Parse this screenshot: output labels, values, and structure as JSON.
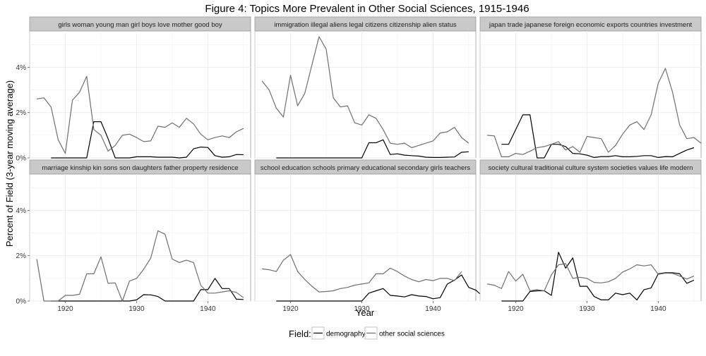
{
  "chart_data": {
    "type": "line",
    "title": "Figure 4: Topics More Prevalent in Other Social Sciences, 1915-1946",
    "xlabel": "Year",
    "ylabel": "Percent of Field (3-year moving average)",
    "x_ticks": [
      1920,
      1930,
      1940
    ],
    "y_ticks": [
      "0%",
      "2%",
      "4%"
    ],
    "xlim": [
      1915,
      1946
    ],
    "ylim": [
      0,
      5.6
    ],
    "grid": true,
    "legend": {
      "title": "Field:",
      "position": "bottom",
      "entries": [
        {
          "name": "demography",
          "color": "#000000"
        },
        {
          "name": "other social sciences",
          "color": "#6f6f6f"
        }
      ]
    },
    "panels": [
      {
        "strip": "girls woman young man girl boys love mother good boy",
        "series": [
          {
            "name": "demography",
            "x_start": 1918,
            "values": [
              0,
              0,
              0,
              0,
              0,
              0,
              1.6,
              1.6,
              0.85,
              0,
              0,
              0,
              0.05,
              0.05,
              0.05,
              0.03,
              0.03,
              0.03,
              0,
              0.03,
              0.4,
              0.48,
              0.46,
              0.1,
              0.03,
              0.05,
              0.15,
              0.14
            ]
          },
          {
            "name": "other social sciences",
            "x_start": 1916,
            "values": [
              2.6,
              2.65,
              2.25,
              0.8,
              0.2,
              2.55,
              2.9,
              3.6,
              1.25,
              1.0,
              0.3,
              0.55,
              1.0,
              1.05,
              0.9,
              0.72,
              0.75,
              1.4,
              1.35,
              1.55,
              1.35,
              1.75,
              1.5,
              1.05,
              0.8,
              0.9,
              0.97,
              0.9,
              1.15,
              1.3
            ]
          }
        ]
      },
      {
        "strip": "immigration illegal aliens legal citizens citizenship alien status",
        "series": [
          {
            "name": "demography",
            "x_start": 1918,
            "values": [
              0,
              0,
              0,
              0,
              0,
              0,
              0,
              0,
              0,
              0,
              0,
              0,
              0,
              0.67,
              0.67,
              0.8,
              0.15,
              0.18,
              0.12,
              0.1,
              0.08,
              0.03,
              0.02,
              0.02,
              0.03,
              0.04,
              0.25,
              0.27
            ]
          },
          {
            "name": "other social sciences",
            "x_start": 1916,
            "values": [
              3.4,
              3.0,
              2.2,
              1.8,
              3.65,
              2.3,
              2.85,
              4.1,
              5.35,
              4.8,
              2.65,
              2.25,
              2.3,
              1.55,
              1.45,
              1.9,
              1.75,
              1.25,
              0.65,
              0.6,
              0.65,
              0.45,
              0.55,
              0.65,
              0.75,
              1.1,
              1.15,
              1.35,
              0.9,
              0.65
            ]
          }
        ]
      },
      {
        "strip": "japan trade japanese foreign economic exports countries investment",
        "series": [
          {
            "name": "demography",
            "x_start": 1918,
            "values": [
              0.6,
              0.6,
              1.25,
              1.9,
              1.9,
              0,
              0,
              0.6,
              0.6,
              0.5,
              0.2,
              0.18,
              0.12,
              0.02,
              0.06,
              0.06,
              0.1,
              0.05,
              0.05,
              0.07,
              0.1,
              0.1,
              0.02,
              0.06,
              0.05,
              0.2,
              0.35,
              0.45
            ]
          },
          {
            "name": "other social sciences",
            "x_start": 1916,
            "values": [
              1.0,
              0.97,
              0.05,
              0.05,
              0.2,
              0.15,
              0.3,
              0.45,
              0.5,
              0.6,
              0.72,
              0.35,
              0.5,
              0.25,
              0.95,
              0.9,
              0.85,
              0.25,
              0.55,
              1.05,
              1.45,
              1.6,
              1.25,
              1.9,
              3.3,
              3.95,
              2.9,
              1.45,
              0.85,
              0.9,
              0.65
            ]
          }
        ]
      },
      {
        "strip": "marriage kinship kin sons son daughters father property residence",
        "series": [
          {
            "name": "demography",
            "x_start": 1918,
            "values": [
              0,
              0,
              0,
              0,
              0,
              0,
              0,
              0,
              0,
              0,
              0,
              0,
              0.05,
              0.28,
              0.27,
              0.2,
              0,
              0,
              0,
              0,
              0,
              0.5,
              0.5,
              1.0,
              0.55,
              0.55,
              0.08,
              0.07
            ]
          },
          {
            "name": "other social sciences",
            "x_start": 1916,
            "values": [
              1.85,
              0,
              0,
              0,
              0.25,
              0.25,
              0.3,
              1.2,
              1.2,
              1.95,
              0.78,
              0.8,
              0,
              0.88,
              1.0,
              1.4,
              1.9,
              3.1,
              2.95,
              1.85,
              1.7,
              1.8,
              1.7,
              0.7,
              0.35,
              0.35,
              0.4,
              0.45,
              0.38,
              0.15
            ]
          }
        ]
      },
      {
        "strip": "school education schools primary educational secondary girls teachers",
        "series": [
          {
            "name": "demography",
            "x_start": 1918,
            "values": [
              0,
              0,
              0,
              0,
              0,
              0,
              0,
              0,
              0,
              0,
              0,
              0,
              0,
              0.35,
              0.45,
              0.55,
              0.25,
              0.22,
              0.18,
              0.28,
              0.22,
              0.2,
              0.1,
              0.15,
              0.75,
              0.92,
              1.15,
              0.6,
              0.48,
              0.2
            ]
          },
          {
            "name": "other social sciences",
            "x_start": 1916,
            "values": [
              1.42,
              1.38,
              1.3,
              1.8,
              2.05,
              1.3,
              0.95,
              0.65,
              0.4,
              0.42,
              0.45,
              0.55,
              0.6,
              0.7,
              0.75,
              0.8,
              1.2,
              1.2,
              1.45,
              1.3,
              1.1,
              0.95,
              0.85,
              0.95,
              0.9,
              1.0,
              1.0,
              0.9,
              1.3
            ]
          }
        ]
      },
      {
        "strip": "society cultural traditional culture system societies values life modern",
        "series": [
          {
            "name": "demography",
            "x_start": 1918,
            "values": [
              0,
              0,
              0,
              0,
              0.42,
              0.45,
              0.45,
              0.25,
              2.15,
              1.45,
              1.9,
              0.65,
              0.65,
              0.2,
              0.05,
              0.05,
              0.35,
              0.28,
              0.35,
              0.05,
              0.5,
              0.58,
              1.2,
              1.25,
              1.25,
              1.2,
              0.78,
              0.92
            ]
          },
          {
            "name": "other social sciences",
            "x_start": 1916,
            "values": [
              0.75,
              0.7,
              0.55,
              1.3,
              0.88,
              1.18,
              0.45,
              0.5,
              0.45,
              1.15,
              1.6,
              1.65,
              1.0,
              1.05,
              1.0,
              0.82,
              0.8,
              0.85,
              1.0,
              1.28,
              1.42,
              1.6,
              1.55,
              1.6,
              1.18,
              1.23,
              1.22,
              1.1,
              0.97,
              1.1
            ]
          }
        ]
      }
    ]
  }
}
